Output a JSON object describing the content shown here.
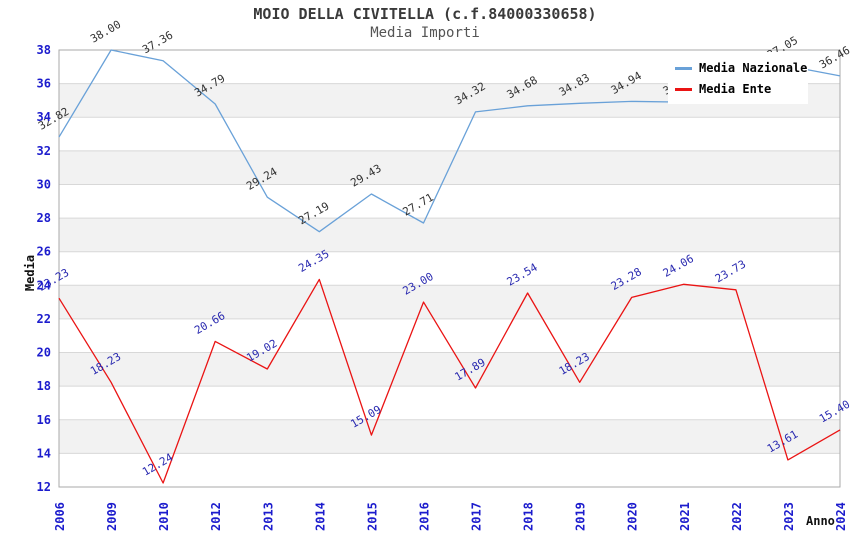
{
  "chart_data": {
    "type": "line",
    "title": "MOIO DELLA CIVITELLA (c.f.84000330658)",
    "subtitle": "Media Importi",
    "xlabel": "Anno",
    "ylabel": "Media",
    "ylim": [
      12,
      38
    ],
    "ytick_step": 2,
    "grid": "horizontal-bands",
    "legend_position": "top-right",
    "categories": [
      "2006",
      "2009",
      "2010",
      "2012",
      "2013",
      "2014",
      "2015",
      "2016",
      "2017",
      "2018",
      "2019",
      "2020",
      "2021",
      "2022",
      "2023",
      "2024"
    ],
    "series": [
      {
        "name": "Media Nazionale",
        "color": "#69a1d8",
        "label_color": "#333333",
        "values": [
          32.82,
          38.0,
          37.36,
          34.79,
          29.24,
          27.19,
          29.43,
          27.71,
          34.32,
          34.68,
          34.83,
          34.94,
          34.9,
          34.9,
          37.05,
          36.46
        ],
        "label_hidden_indices": [
          12,
          13
        ],
        "note_hidden_labels": "values for 2021 and 2022 are covered by the legend box"
      },
      {
        "name": "Media Ente",
        "color": "#ea1414",
        "label_color": "#2a2ab0",
        "values": [
          23.23,
          18.23,
          12.24,
          20.66,
          19.02,
          24.35,
          15.09,
          23.0,
          17.89,
          23.54,
          18.23,
          23.28,
          24.06,
          23.73,
          13.61,
          15.4
        ],
        "label_hidden_indices": []
      }
    ],
    "colors": {
      "band": "#f2f2f2",
      "grid": "#d8d8d8",
      "border": "#aaaaaa",
      "axis_text": "#1c1ccd",
      "title": "#3a3a3a",
      "subtitle": "#555555"
    }
  }
}
